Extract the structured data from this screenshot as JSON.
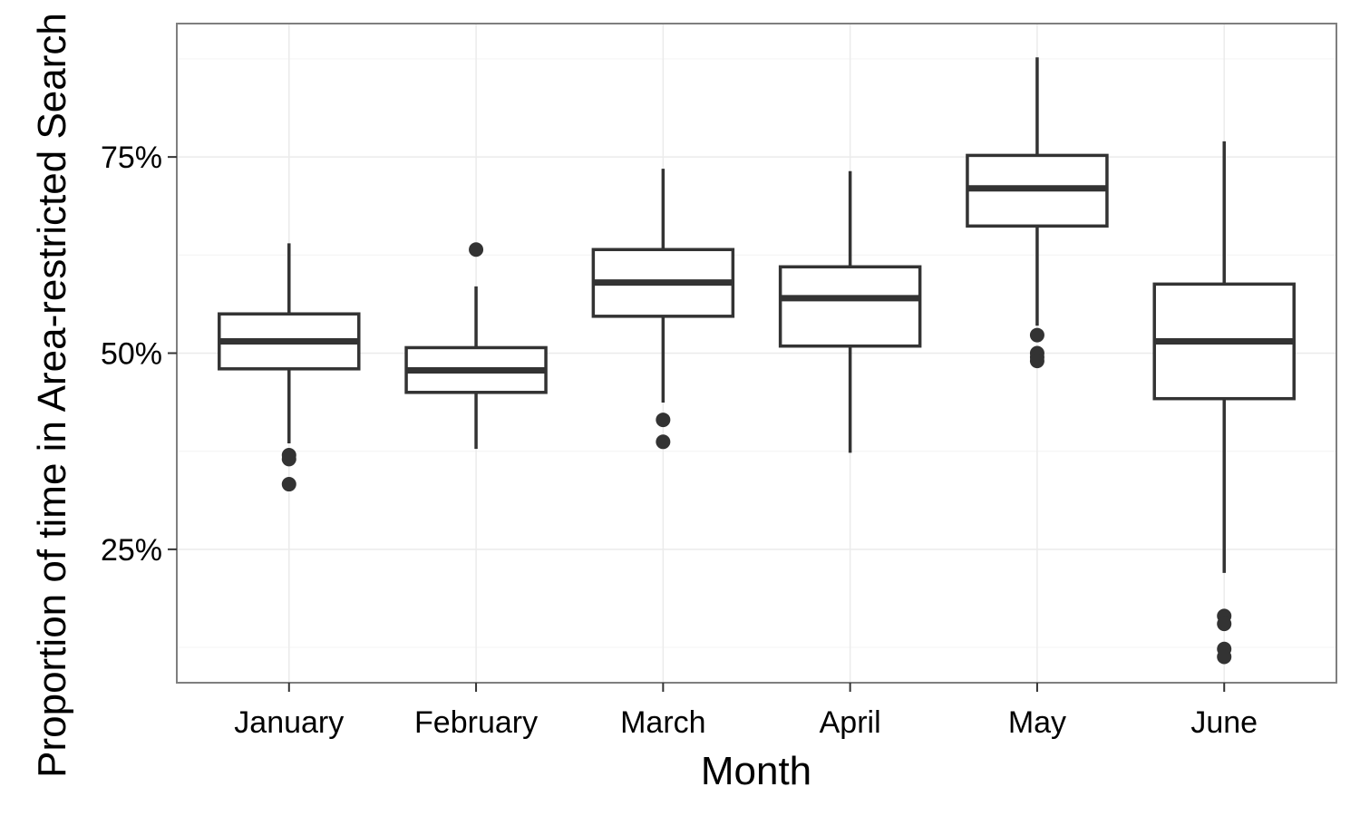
{
  "chart_data": {
    "type": "box",
    "xlabel": "Month",
    "ylabel": "Proportion of time in Area-restricted Search",
    "categories": [
      "January",
      "February",
      "March",
      "April",
      "May",
      "June"
    ],
    "ylim": [
      0.08,
      0.92
    ],
    "yticks": [
      0.25,
      0.5,
      0.75
    ],
    "ytick_labels": [
      "25%",
      "50%",
      "75%"
    ],
    "minor_gridlines": [
      0.125,
      0.375,
      0.625,
      0.875
    ],
    "grid": true,
    "series": [
      {
        "category": "January",
        "whisker_low": 0.385,
        "q1": 0.48,
        "median": 0.515,
        "q3": 0.55,
        "whisker_high": 0.64,
        "outliers": [
          0.37,
          0.365,
          0.333
        ]
      },
      {
        "category": "February",
        "whisker_low": 0.378,
        "q1": 0.45,
        "median": 0.478,
        "q3": 0.507,
        "whisker_high": 0.585,
        "outliers": [
          0.632
        ]
      },
      {
        "category": "March",
        "whisker_low": 0.437,
        "q1": 0.547,
        "median": 0.59,
        "q3": 0.632,
        "whisker_high": 0.735,
        "outliers": [
          0.415,
          0.387
        ]
      },
      {
        "category": "April",
        "whisker_low": 0.373,
        "q1": 0.509,
        "median": 0.57,
        "q3": 0.61,
        "whisker_high": 0.732,
        "outliers": []
      },
      {
        "category": "May",
        "whisker_low": 0.535,
        "q1": 0.662,
        "median": 0.71,
        "q3": 0.752,
        "whisker_high": 0.877,
        "outliers": [
          0.523,
          0.5,
          0.495,
          0.49
        ]
      },
      {
        "category": "June",
        "whisker_low": 0.22,
        "q1": 0.442,
        "median": 0.515,
        "q3": 0.588,
        "whisker_high": 0.77,
        "outliers": [
          0.165,
          0.155,
          0.123,
          0.113
        ]
      }
    ]
  }
}
